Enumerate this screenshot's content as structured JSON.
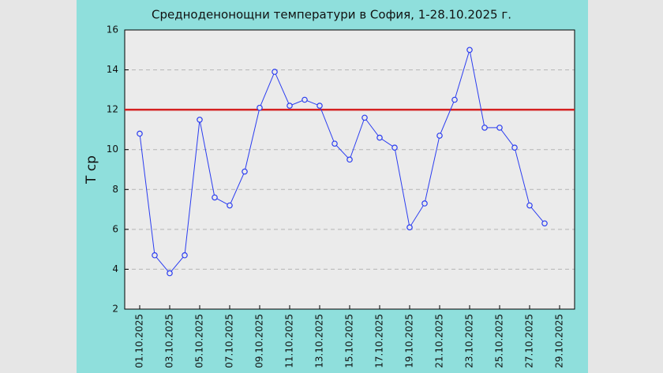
{
  "chart_data": {
    "type": "line",
    "title": "Средноденонощни температури в София, 1-28.10.2025 г.",
    "y_label": "T ср",
    "x": [
      1,
      2,
      3,
      4,
      5,
      6,
      7,
      8,
      9,
      10,
      11,
      12,
      13,
      14,
      15,
      16,
      17,
      18,
      19,
      20,
      21,
      22,
      23,
      24,
      25,
      26,
      27,
      28
    ],
    "series": [
      {
        "color": "#2a3cf0",
        "values": [
          10.8,
          4.7,
          3.8,
          4.7,
          11.5,
          7.6,
          7.2,
          8.9,
          12.1,
          13.9,
          12.2,
          12.5,
          12.2,
          10.3,
          9.5,
          11.6,
          10.6,
          10.1,
          6.1,
          7.3,
          10.7,
          12.5,
          15.0,
          11.1,
          11.1,
          10.1,
          7.2,
          6.3
        ]
      }
    ],
    "xlim": [
      0,
      30
    ],
    "xticks": [
      {
        "value": 1,
        "label": "01.10.2025"
      },
      {
        "value": 3,
        "label": "03.10.2025"
      },
      {
        "value": 5,
        "label": "05.10.2025"
      },
      {
        "value": 7,
        "label": "07.10.2025"
      },
      {
        "value": 9,
        "label": "09.10.2025"
      },
      {
        "value": 11,
        "label": "11.10.2025"
      },
      {
        "value": 13,
        "label": "13.10.2025"
      },
      {
        "value": 15,
        "label": "15.10.2025"
      },
      {
        "value": 17,
        "label": "17.10.2025"
      },
      {
        "value": 19,
        "label": "19.10.2025"
      },
      {
        "value": 21,
        "label": "21.10.2025"
      },
      {
        "value": 23,
        "label": "23.10.2025"
      },
      {
        "value": 25,
        "label": "25.10.2025"
      },
      {
        "value": 27,
        "label": "27.10.2025"
      },
      {
        "value": 29,
        "label": "29.10.2025"
      }
    ],
    "ylim": [
      2,
      16
    ],
    "yticks": [
      2,
      4,
      6,
      8,
      10,
      12,
      14,
      16
    ],
    "reference_line": {
      "value": 12,
      "color": "#d42020"
    },
    "grid": true
  }
}
